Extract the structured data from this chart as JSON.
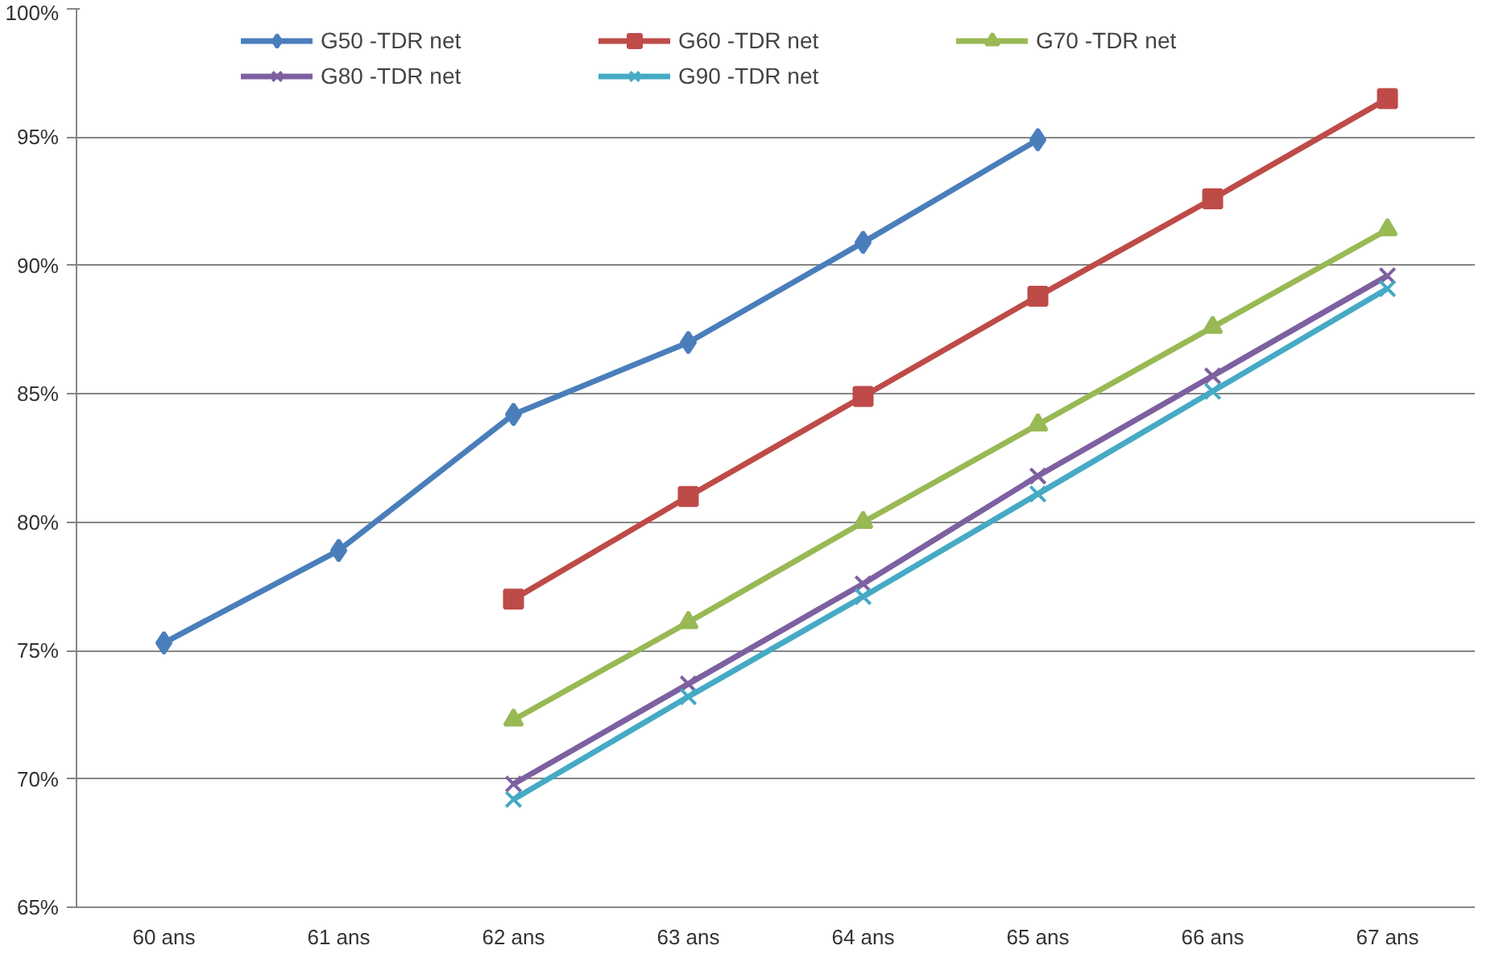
{
  "chart_data": {
    "type": "line",
    "categories": [
      "60 ans",
      "61 ans",
      "62 ans",
      "63 ans",
      "64 ans",
      "65 ans",
      "66 ans",
      "67 ans"
    ],
    "series": [
      {
        "name": "G50 -TDR net",
        "color": "#4a7ebb",
        "marker": "diamond",
        "values": [
          75.3,
          78.9,
          84.2,
          87.0,
          90.9,
          94.9,
          null,
          null
        ]
      },
      {
        "name": "G60 -TDR net",
        "color": "#be4b48",
        "marker": "square",
        "values": [
          null,
          null,
          77.0,
          81.0,
          84.9,
          88.8,
          92.6,
          96.5
        ]
      },
      {
        "name": "G70 -TDR net",
        "color": "#98b954",
        "marker": "triangle",
        "values": [
          null,
          null,
          72.3,
          76.1,
          80.0,
          83.8,
          87.6,
          91.4
        ]
      },
      {
        "name": "G80 -TDR net",
        "color": "#7d60a0",
        "marker": "cross",
        "values": [
          null,
          null,
          69.8,
          73.7,
          77.6,
          81.8,
          85.7,
          89.6
        ]
      },
      {
        "name": "G90 -TDR net",
        "color": "#46aac5",
        "marker": "cross",
        "values": [
          null,
          null,
          69.2,
          73.2,
          77.1,
          81.1,
          85.1,
          89.1
        ]
      }
    ],
    "ylim": [
      65,
      100
    ],
    "yticks": [
      {
        "value": 65,
        "label": "65%"
      },
      {
        "value": 70,
        "label": "70%"
      },
      {
        "value": 75,
        "label": "75%"
      },
      {
        "value": 80,
        "label": "80%"
      },
      {
        "value": 85,
        "label": "85%"
      },
      {
        "value": 90,
        "label": "90%"
      },
      {
        "value": 95,
        "label": "95%"
      },
      {
        "value": 100,
        "label": "100%"
      }
    ],
    "grid": "y",
    "legend": "top",
    "line_style": "solid"
  }
}
